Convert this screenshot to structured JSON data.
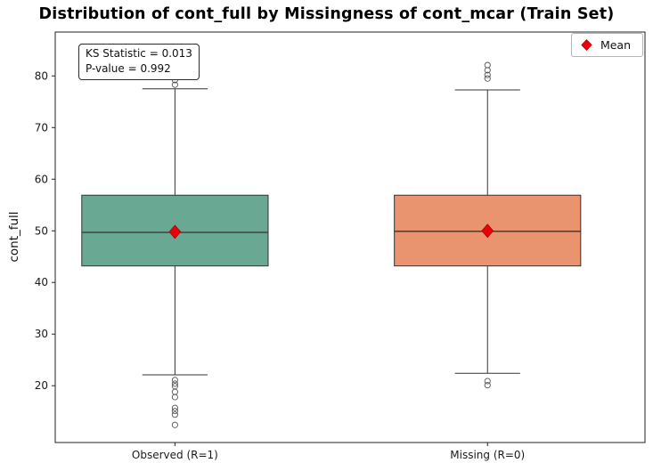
{
  "chart_data": {
    "type": "boxplot",
    "title": "Distribution of cont_full by Missingness of cont_mcar (Train Set)",
    "ylabel": "cont_full",
    "xlabel": "",
    "ylim": [
      9,
      88.5
    ],
    "yticks": [
      20,
      30,
      40,
      50,
      60,
      70,
      80
    ],
    "grid": false,
    "legend": {
      "label": "Mean",
      "marker": "red-diamond",
      "position": "upper right"
    },
    "annotation": {
      "line1": "KS Statistic = 0.013",
      "line2": "P-value = 0.992"
    },
    "mean_marker_color": "#e8000b",
    "mean_marker_edge": "#990000",
    "box_edge_color": "#333333",
    "groups": [
      {
        "label": "Observed (R=1)",
        "color": "#69a893",
        "q1": 43.2,
        "median": 49.7,
        "q3": 56.9,
        "whisker_low": 22.1,
        "whisker_high": 77.5,
        "mean": 49.8,
        "fliers_high": [
          78.3,
          79.2,
          79.9
        ],
        "fliers_low": [
          21.1,
          20.4,
          19.9,
          18.8,
          17.8,
          15.7,
          15.1,
          14.4,
          12.4
        ]
      },
      {
        "label": "Missing (R=0)",
        "color": "#e9946e",
        "q1": 43.2,
        "median": 49.9,
        "q3": 56.9,
        "whisker_low": 22.4,
        "whisker_high": 77.3,
        "mean": 50.0,
        "fliers_high": [
          79.5,
          80.2,
          81.1,
          82.1
        ],
        "fliers_low": [
          20.9,
          20.1
        ]
      }
    ]
  }
}
